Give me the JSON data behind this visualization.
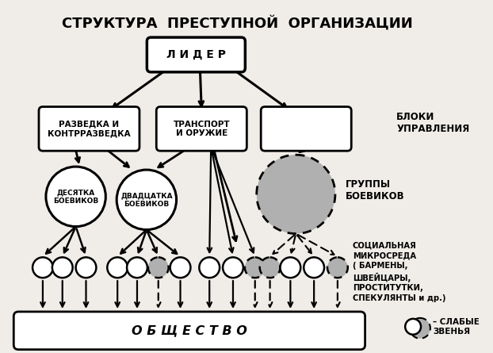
{
  "title": "СТРУКТУРА  ПРЕСТУПНОЙ  ОРГАНИЗАЦИИ",
  "title_fontsize": 13,
  "bg_color": "#f0ede8",
  "leader_text": "Л И Д Е Р",
  "box1_text": "РАЗВЕДКА И\nКОНТРРАЗВЕДКА",
  "box2_text": "ТРАНСПОРТ\nИ ОРУЖИЕ",
  "box3_text": "",
  "label_bloki": "БЛОКИ\nУПРАВЛЕНИЯ",
  "circle1_text": "ДЕСЯТКА\nБОЕВИКОВ",
  "circle2_text": "ДВАДЦАТКА\nБОЕВИКОВ",
  "label_gruppy": "ГРУППЫ\nБОЕВИКОВ",
  "label_sotsial": "СОЦИАЛЬНАЯ\nМИКРОСРЕДА\n( БАРМЕНЫ,\nШВЕЙЦАРЫ,\nПРОСТИТУТКИ,\nСПЕКУЛЯНТЫ и др.)",
  "label_obsh": "О Б Щ Е С Т В О",
  "label_slab": "– СЛАБЫЕ\nЗВЕНЬЯ",
  "gray_color": "#b0b0b0"
}
